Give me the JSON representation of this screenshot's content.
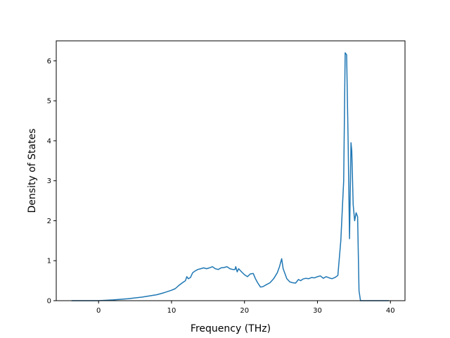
{
  "chart_data": {
    "type": "line",
    "title": "",
    "xlabel": "Frequency (THz)",
    "ylabel": "Density of States",
    "xlim": [
      -5.8,
      42
    ],
    "ylim": [
      0,
      6.5
    ],
    "x_ticks": [
      0,
      10,
      20,
      30,
      40
    ],
    "y_ticks": [
      0,
      1,
      2,
      3,
      4,
      5,
      6
    ],
    "x_tick_labels": [
      "0",
      "10",
      "20",
      "30",
      "40"
    ],
    "y_tick_labels": [
      "0",
      "1",
      "2",
      "3",
      "4",
      "5",
      "6"
    ],
    "grid": false,
    "legend": "none",
    "series": [
      {
        "color": "#1f77b4",
        "x": [
          -3.7,
          0,
          2,
          4,
          6,
          8,
          9,
          10,
          10.5,
          11,
          11.5,
          11.9,
          12.1,
          12.3,
          12.6,
          12.9,
          13.2,
          13.6,
          14,
          14.4,
          14.8,
          15.2,
          15.6,
          16,
          16.4,
          16.8,
          17.2,
          17.6,
          18,
          18.4,
          18.7,
          18.8,
          19,
          19.2,
          19.6,
          20,
          20.4,
          20.8,
          21.2,
          21.5,
          21.8,
          22.2,
          22.5,
          23,
          23.5,
          24,
          24.5,
          24.8,
          25.1,
          25.3,
          25.5,
          25.8,
          26.2,
          26.6,
          27,
          27.4,
          27.7,
          28,
          28.4,
          28.8,
          29.2,
          29.6,
          30,
          30.4,
          30.8,
          31.2,
          31.6,
          32,
          32.4,
          32.8,
          33.2,
          33.6,
          33.8,
          34,
          34.2,
          34.4,
          34.6,
          34.7,
          34.9,
          35.1,
          35.3,
          35.5,
          35.7,
          35.9,
          36.1,
          36.3,
          37,
          39.8
        ],
        "y": [
          0,
          0,
          0.02,
          0.05,
          0.09,
          0.15,
          0.2,
          0.26,
          0.3,
          0.38,
          0.45,
          0.5,
          0.6,
          0.55,
          0.58,
          0.7,
          0.74,
          0.78,
          0.8,
          0.82,
          0.8,
          0.82,
          0.85,
          0.8,
          0.78,
          0.82,
          0.83,
          0.85,
          0.8,
          0.78,
          0.78,
          0.85,
          0.72,
          0.8,
          0.72,
          0.65,
          0.6,
          0.67,
          0.68,
          0.55,
          0.45,
          0.34,
          0.35,
          0.4,
          0.45,
          0.55,
          0.7,
          0.85,
          1.05,
          0.8,
          0.7,
          0.55,
          0.47,
          0.45,
          0.44,
          0.53,
          0.5,
          0.54,
          0.56,
          0.55,
          0.58,
          0.57,
          0.6,
          0.62,
          0.56,
          0.6,
          0.57,
          0.55,
          0.58,
          0.63,
          1.5,
          3.0,
          6.2,
          6.15,
          4.0,
          1.55,
          3.95,
          3.75,
          2.4,
          2.0,
          2.2,
          2.1,
          0.25,
          0.0,
          0,
          0,
          0,
          0
        ]
      }
    ]
  }
}
